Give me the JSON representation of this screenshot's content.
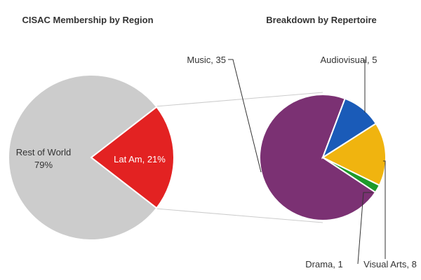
{
  "chart_data": [
    {
      "type": "pie",
      "title": "CISAC Membership by Region",
      "slices": [
        {
          "label": "Lat Am",
          "value": 21,
          "display": "Lat Am, 21%",
          "color": "#e32222"
        },
        {
          "label": "Rest of World",
          "value": 79,
          "display": "Rest of World",
          "display2": "79%",
          "color": "#cccccc"
        }
      ]
    },
    {
      "type": "pie",
      "title": "Breakdown by Repertoire",
      "slices": [
        {
          "label": "Music",
          "value": 35,
          "display": "Music, 35",
          "color": "#7b3173"
        },
        {
          "label": "Audiovisual",
          "value": 5,
          "display": "Audiovisual, 5",
          "color": "#1a5bb8"
        },
        {
          "label": "Visual Arts",
          "value": 8,
          "display": "Visual Arts, 8",
          "color": "#f0b40f"
        },
        {
          "label": "Drama",
          "value": 1,
          "display": "Drama, 1",
          "color": "#1e9a2a"
        }
      ]
    }
  ]
}
